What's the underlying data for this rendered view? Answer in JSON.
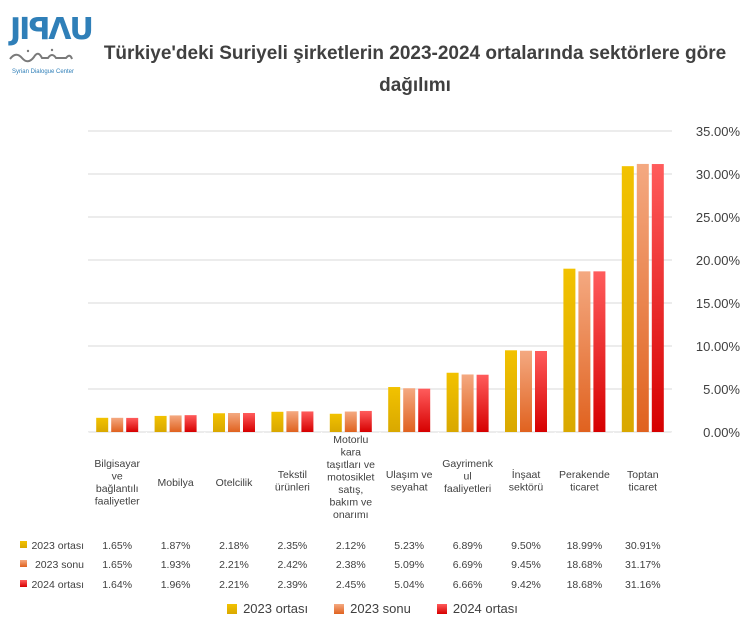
{
  "header": {
    "title": "Türkiye'deki Suriyeli şirketlerin 2023-2024 ortalarında sektörlere göre dağılımı"
  },
  "logo": {
    "mark_text": "JIꟼΛU",
    "caption": "Syrian Dialogue Center"
  },
  "chart_data": {
    "type": "bar",
    "title": "Türkiye'deki Suriyeli şirketlerin 2023-2024 ortalarında sektörlere göre dağılımı",
    "categories": [
      [
        "Bilgisayar",
        "ve",
        "bağlantılı",
        "faaliyetler"
      ],
      [
        "Mobilya"
      ],
      [
        "Otelcilik"
      ],
      [
        "Tekstil",
        "ürünleri"
      ],
      [
        "Motorlu",
        "kara",
        "taşıtları ve",
        "motosiklet",
        "satış,",
        "bakım ve",
        "onarımı"
      ],
      [
        "Ulaşım ve",
        "seyahat"
      ],
      [
        "Gayrimenk",
        "ul",
        "faaliyetleri"
      ],
      [
        "İnşaat",
        "sektörü"
      ],
      [
        "Perakende",
        "ticaret"
      ],
      [
        "Toptan",
        "ticaret"
      ]
    ],
    "series": [
      {
        "name": "2023 ortası",
        "values": [
          1.65,
          1.87,
          2.18,
          2.35,
          2.12,
          5.23,
          6.89,
          9.5,
          18.99,
          30.91
        ],
        "labels": [
          "1.65%",
          "1.87%",
          "2.18%",
          "2.35%",
          "2.12%",
          "5.23%",
          "6.89%",
          "9.50%",
          "18.99%",
          "30.91%"
        ],
        "color_top": "#f2c200",
        "color_bottom": "#d9a800"
      },
      {
        "name": "2023 sonu",
        "values": [
          1.65,
          1.93,
          2.21,
          2.42,
          2.38,
          5.09,
          6.69,
          9.45,
          18.68,
          31.17
        ],
        "labels": [
          "1.65%",
          "1.93%",
          "2.21%",
          "2.42%",
          "2.38%",
          "5.09%",
          "6.69%",
          "9.45%",
          "18.68%",
          "31.17%"
        ],
        "color_top": "#f4a981",
        "color_bottom": "#e0621f"
      },
      {
        "name": "2024 ortası",
        "values": [
          1.64,
          1.96,
          2.21,
          2.39,
          2.45,
          5.04,
          6.66,
          9.42,
          18.68,
          31.16
        ],
        "labels": [
          "1.64%",
          "1.96%",
          "2.21%",
          "2.39%",
          "2.45%",
          "5.04%",
          "6.66%",
          "9.42%",
          "18.68%",
          "31.16%"
        ],
        "color_top": "#ff5c5c",
        "color_bottom": "#d60000"
      }
    ],
    "y_ticks": [
      "0.00%",
      "5.00%",
      "10.00%",
      "15.00%",
      "20.00%",
      "25.00%",
      "30.00%",
      "35.00%"
    ],
    "y_tick_values": [
      0,
      5,
      10,
      15,
      20,
      25,
      30,
      35
    ],
    "ylim": [
      0,
      35
    ],
    "y_axis_side": "right",
    "grid": true,
    "data_table": true,
    "legend_position": "bottom"
  }
}
